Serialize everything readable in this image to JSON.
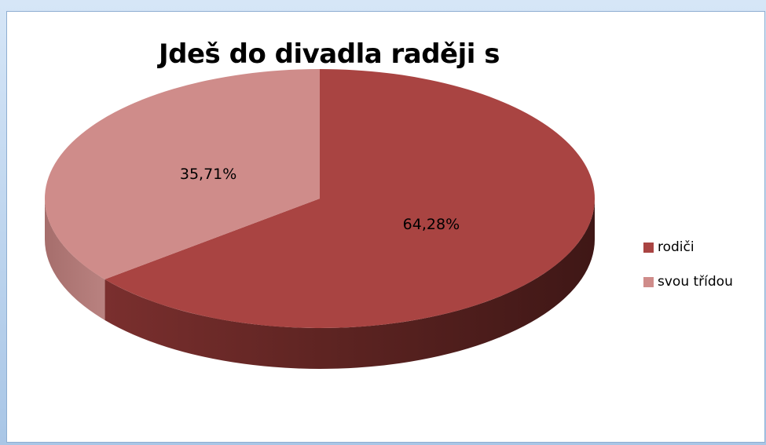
{
  "chart_data": {
    "type": "pie",
    "title": "Jdeš do divadla raději s",
    "slices": [
      {
        "name": "rodiči",
        "value": 64.28,
        "label": "64,28%",
        "color": "#a94442"
      },
      {
        "name": "svou třídou",
        "value": 35.71,
        "label": "35,71%",
        "color": "#cf8c8a"
      }
    ],
    "legend_position": "right",
    "style": "3d"
  }
}
